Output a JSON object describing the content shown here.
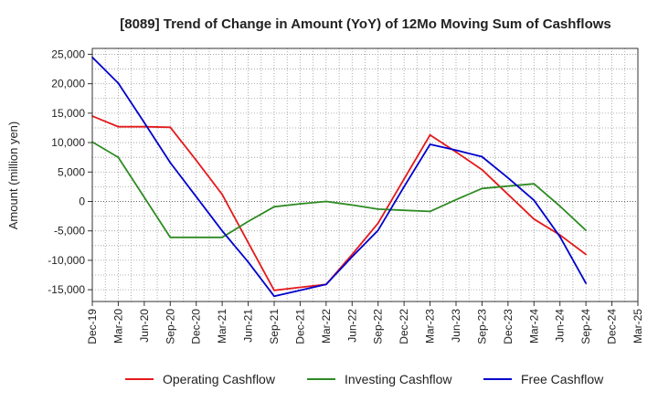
{
  "chart_data": {
    "type": "line",
    "title": "[8089]  Trend of Change in Amount (YoY) of 12Mo Moving Sum of Cashflows",
    "xlabel": "",
    "ylabel": "Amount (million yen)",
    "ylim": [
      -17000,
      26000
    ],
    "yticks": [
      25000,
      20000,
      15000,
      10000,
      5000,
      0,
      -5000,
      -10000,
      -15000
    ],
    "ytick_labels": [
      "25,000",
      "20,000",
      "15,000",
      "10,000",
      "5,000",
      "0",
      "-5,000",
      "-10,000",
      "-15,000"
    ],
    "categories": [
      "Dec-19",
      "Mar-20",
      "Jun-20",
      "Sep-20",
      "Dec-20",
      "Mar-21",
      "Jun-21",
      "Sep-21",
      "Dec-21",
      "Mar-22",
      "Jun-22",
      "Sep-22",
      "Dec-22",
      "Mar-23",
      "Jun-23",
      "Sep-23",
      "Dec-23",
      "Mar-24",
      "Jun-24",
      "Sep-24",
      "Dec-24",
      "Mar-25"
    ],
    "grid": true,
    "legend_position": "bottom",
    "series": [
      {
        "name": "Operating Cashflow",
        "color": "#e41a1c",
        "values": [
          14500,
          12700,
          12700,
          12600,
          7000,
          1200,
          -7000,
          -15100,
          -14600,
          -14100,
          -9000,
          -3700,
          3800,
          11300,
          8400,
          5400,
          1200,
          -3000,
          -5700,
          -9000,
          null,
          null
        ]
      },
      {
        "name": "Investing Cashflow",
        "color": "#2e8b22",
        "values": [
          10100,
          7500,
          700,
          -6100,
          -6100,
          -6100,
          -3400,
          -900,
          -400,
          0,
          -600,
          -1300,
          -1500,
          -1700,
          300,
          2200,
          2600,
          3000,
          -800,
          -4900,
          null,
          null
        ]
      },
      {
        "name": "Free Cashflow",
        "color": "#0000cc",
        "values": [
          24500,
          20100,
          13400,
          6600,
          800,
          -5000,
          -10300,
          -16100,
          -15100,
          -14100,
          -9400,
          -4900,
          2500,
          9700,
          8700,
          7600,
          4000,
          200,
          -6000,
          -13900,
          null,
          null
        ]
      }
    ]
  }
}
